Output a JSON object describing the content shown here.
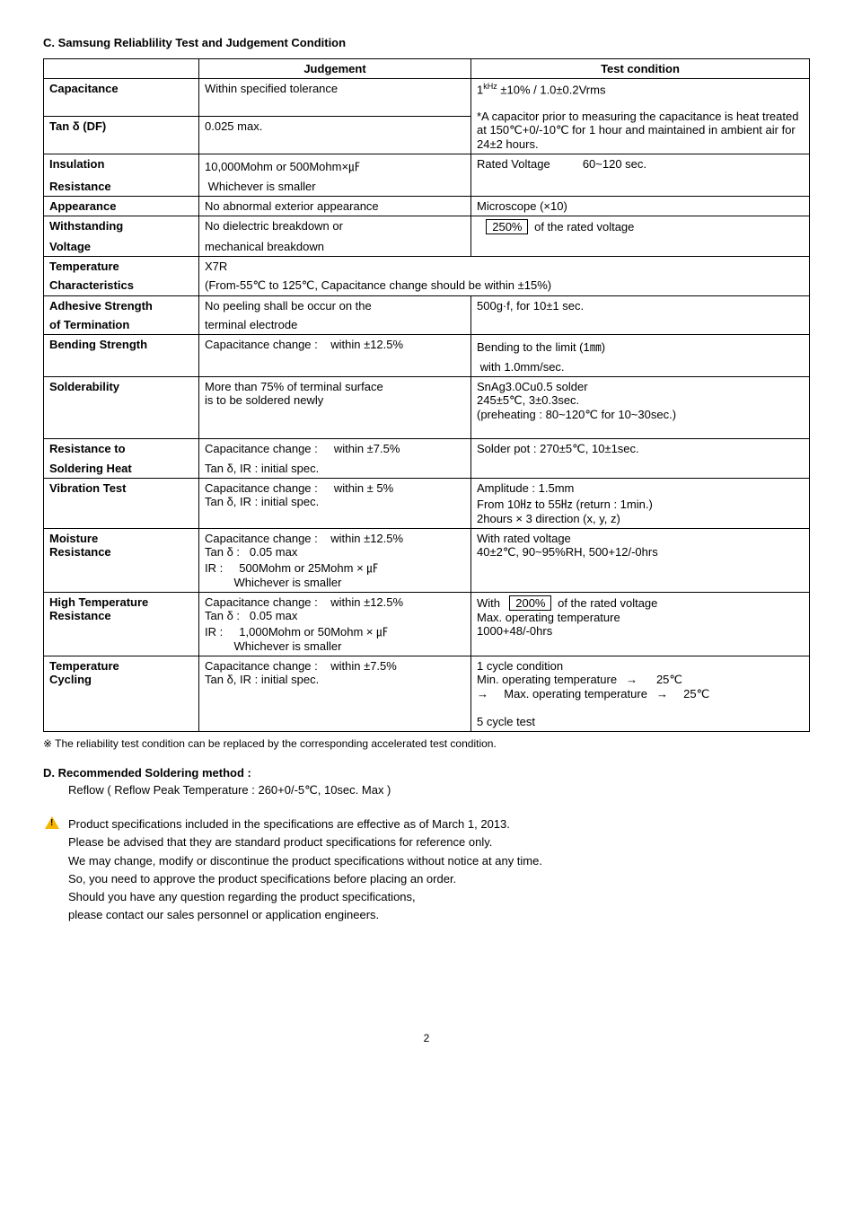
{
  "sectionC": {
    "title": "C. Samsung Reliablility Test and Judgement Condition",
    "headers": {
      "c1": "",
      "c2": "Judgement",
      "c3": "Test condition"
    },
    "rows": {
      "capacitance": {
        "param": "Capacitance",
        "judge": "Within specified tolerance",
        "test_pre": "1",
        "test_sup": "kHz",
        "test_post": " ±10% / 1.0±0.2Vrms"
      },
      "tand": {
        "param": "Tan δ (DF)",
        "judge": "0.025 max.",
        "test": "*A capacitor prior to measuring the capacitance is heat treated at 150℃+0/-10℃ for 1 hour and maintained in ambient air for 24±2 hours."
      },
      "insulation": {
        "param1": "Insulation",
        "param2": "Resistance",
        "judge1": "10,000Mohm or 500Mohm×㎌",
        "judge2": "Whichever is smaller",
        "test_label": "Rated Voltage",
        "test_val": "60~120 sec."
      },
      "appearance": {
        "param": "Appearance",
        "judge": "No abnormal exterior appearance",
        "test": "Microscope (×10)"
      },
      "withstanding": {
        "param1": "Withstanding",
        "param2": "Voltage",
        "judge1": "No dielectric breakdown or",
        "judge2": "mechanical breakdown",
        "box": "250%",
        "test_post": " of the rated voltage"
      },
      "tempchar": {
        "param1": "Temperature",
        "param2": "Characteristics",
        "judge1": "X7R",
        "judge2": "(From-55℃ to 125℃, Capacitance change should be within ±15%)"
      },
      "adhesive": {
        "param1": "Adhesive Strength",
        "param2": "of Termination",
        "judge1": "No peeling shall be occur on the",
        "judge2": "terminal electrode",
        "test": "500g·f, for 10±1 sec."
      },
      "bending": {
        "param": "Bending Strength",
        "judge_l": "Capacitance change :",
        "judge_r": "within ±12.5%",
        "test1": "Bending to the limit (1㎜)",
        "test2": "with 1.0mm/sec."
      },
      "solderability": {
        "param": "Solderability",
        "judge1": "More than 75% of terminal surface",
        "judge2": "is to be soldered newly",
        "test1": "SnAg3.0Cu0.5 solder",
        "test2": "245±5℃, 3±0.3sec.",
        "test3": "(preheating : 80~120℃ for 10~30sec.)"
      },
      "solderheat": {
        "param1": "Resistance to",
        "param2": "Soldering Heat",
        "judge1_l": "Capacitance change :",
        "judge1_r": "within ±7.5%",
        "judge2": "Tan δ, IR : initial spec.",
        "test": "Solder pot : 270±5℃, 10±1sec."
      },
      "vibration": {
        "param": "Vibration Test",
        "judge1_l": "Capacitance change :",
        "judge1_r": "within ± 5%",
        "judge2": "Tan δ, IR : initial spec.",
        "test1": "Amplitude : 1.5mm",
        "test2": "From 10㎐ to 55㎐ (return : 1min.)",
        "test3": "2hours × 3 direction (x, y, z)"
      },
      "moisture": {
        "param1": "Moisture",
        "param2": "Resistance",
        "judge1_l": "Capacitance change :",
        "judge1_r": "within ±12.5%",
        "judge2_l": "Tan δ :",
        "judge2_r": "0.05 max",
        "judge3_l": "IR :",
        "judge3_r": "500Mohm or 25Mohm × ㎌",
        "judge4": "Whichever is smaller",
        "test1": "With rated voltage",
        "test2": "40±2℃, 90~95%RH, 500+12/-0hrs"
      },
      "hightemp": {
        "param1": "High Temperature",
        "param2": "Resistance",
        "judge1_l": "Capacitance change :",
        "judge1_r": "within ±12.5%",
        "judge2_l": "Tan δ :",
        "judge2_r": "0.05 max",
        "judge3_l": "IR :",
        "judge3_r": "1,000Mohm or 50Mohm × ㎌",
        "judge4": "Whichever is smaller",
        "test1_pre": "With",
        "test1_box": "200%",
        "test1_post": " of the rated voltage",
        "test2": "Max. operating temperature",
        "test3": "1000+48/-0hrs"
      },
      "cycling": {
        "param1": "Temperature",
        "param2": "Cycling",
        "judge1_l": "Capacitance change :",
        "judge1_r": "within  ±7.5%",
        "judge2": "Tan δ, IR : initial spec.",
        "test1": "1 cycle condition",
        "test2": "Min. operating temperature",
        "test2b": "25℃",
        "test3": "Max. operating temperature",
        "test3b": "25℃",
        "test4": "5 cycle test"
      }
    },
    "footnote": "※ The reliability test condition can be replaced by the corresponding accelerated test condition."
  },
  "sectionD": {
    "title": "D. Recommended Soldering method :",
    "line": "Reflow ( Reflow Peak Temperature : 260+0/-5℃, 10sec. Max )"
  },
  "warning": {
    "l1": "Product specifications included in the specifications are effective as of March 1, 2013.",
    "l2": "Please be advised that they are standard product specifications for reference only.",
    "l3": "We may change, modify or discontinue the product specifications without notice at any time.",
    "l4": "So, you need to approve the product specifications before placing an order.",
    "l5": "Should you have any question regarding the product specifications,",
    "l6": "please contact our sales personnel or application engineers."
  },
  "pageNum": "2"
}
